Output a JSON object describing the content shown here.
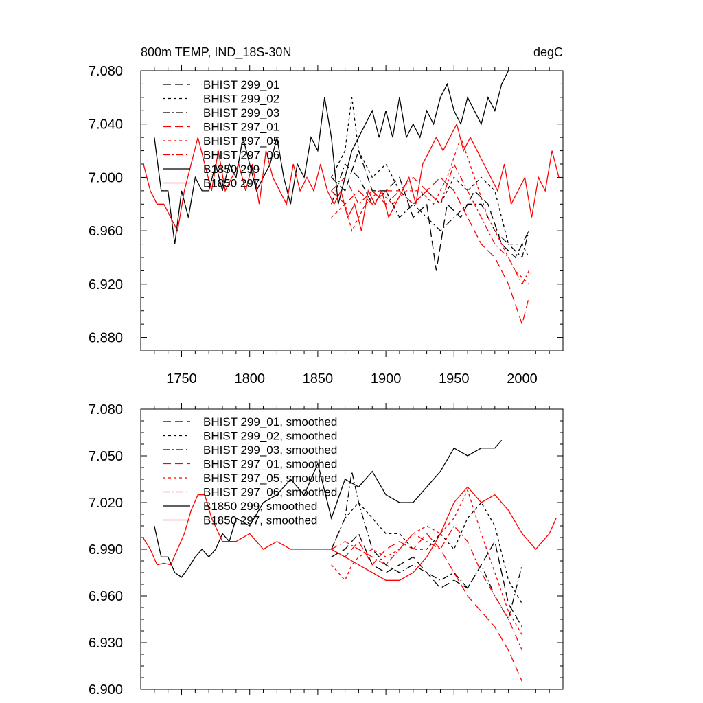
{
  "chart_data": [
    {
      "type": "line",
      "title": "800m TEMP, IND_18S-30N",
      "units": "degC",
      "xlim": [
        1720,
        2030
      ],
      "ylim": [
        6.87,
        7.08
      ],
      "xticks": [
        1750,
        1800,
        1850,
        1900,
        1950,
        2000
      ],
      "yticks": [
        6.88,
        6.92,
        6.96,
        7.0,
        7.04,
        7.08
      ],
      "ytick_labels": [
        "6.880",
        "6.920",
        "6.960",
        "7.000",
        "7.040",
        "7.080"
      ],
      "xtick_labels": [
        "1750",
        "1800",
        "1850",
        "1900",
        "1950",
        "2000"
      ],
      "legend": [
        "BHIST 299_01",
        "BHIST 299_02",
        "BHIST 299_03",
        "BHIST 297_01",
        "BHIST 297_05",
        "BHIST 297_06",
        "B1850 299",
        "B1850 297"
      ],
      "series": [
        {
          "name": "BHIST 299_01",
          "color": "#000000",
          "dash": "long",
          "x": [
            1860,
            1870,
            1880,
            1890,
            1900,
            1910,
            1920,
            1930,
            1937,
            1945,
            1955,
            1965,
            1975,
            1985,
            1995,
            2005
          ],
          "values": [
            7.0,
            6.99,
            7.02,
            6.99,
            6.99,
            7.0,
            6.97,
            6.98,
            6.93,
            6.98,
            6.97,
            6.99,
            6.98,
            6.95,
            6.94,
            6.96
          ]
        },
        {
          "name": "BHIST 299_02",
          "color": "#000000",
          "dash": "short",
          "x": [
            1860,
            1870,
            1875,
            1880,
            1890,
            1900,
            1910,
            1920,
            1930,
            1940,
            1950,
            1960,
            1970,
            1980,
            1990,
            2000,
            2005
          ],
          "values": [
            7.0,
            7.02,
            7.06,
            7.02,
            7.0,
            7.01,
            6.99,
            6.98,
            6.99,
            6.98,
            7.0,
            6.99,
            7.0,
            6.99,
            6.95,
            6.95,
            6.94
          ]
        },
        {
          "name": "BHIST 299_03",
          "color": "#000000",
          "dash": "dashdot",
          "x": [
            1860,
            1870,
            1880,
            1890,
            1900,
            1910,
            1920,
            1930,
            1940,
            1950,
            1960,
            1970,
            1980,
            1990,
            2000,
            2005
          ],
          "values": [
            6.98,
            7.01,
            7.0,
            6.98,
            6.99,
            6.97,
            6.98,
            6.97,
            6.96,
            6.97,
            6.98,
            6.98,
            6.96,
            6.95,
            6.94,
            6.96
          ]
        },
        {
          "name": "BHIST 297_01",
          "color": "#ff0000",
          "dash": "long",
          "x": [
            1860,
            1870,
            1880,
            1890,
            1900,
            1910,
            1920,
            1930,
            1940,
            1950,
            1960,
            1970,
            1980,
            1990,
            2000,
            2005
          ],
          "values": [
            6.99,
            6.98,
            6.99,
            6.98,
            6.99,
            6.99,
            6.98,
            6.99,
            7.0,
            6.99,
            6.97,
            6.95,
            6.94,
            6.92,
            6.89,
            6.91
          ]
        },
        {
          "name": "BHIST 297_05",
          "color": "#ff0000",
          "dash": "short",
          "x": [
            1860,
            1870,
            1875,
            1885,
            1895,
            1905,
            1915,
            1925,
            1935,
            1945,
            1955,
            1965,
            1975,
            1985,
            1995,
            2005
          ],
          "values": [
            6.97,
            6.98,
            6.96,
            6.98,
            6.99,
            6.98,
            6.99,
            6.99,
            6.98,
            7.0,
            7.03,
            7.0,
            6.97,
            6.95,
            6.93,
            6.92
          ]
        },
        {
          "name": "BHIST 297_06",
          "color": "#ff0000",
          "dash": "dashdot",
          "x": [
            1860,
            1870,
            1880,
            1890,
            1900,
            1910,
            1920,
            1930,
            1940,
            1950,
            1960,
            1970,
            1980,
            1990,
            2000,
            2005
          ],
          "values": [
            6.99,
            7.0,
            6.98,
            6.99,
            6.98,
            6.99,
            7.0,
            6.99,
            6.98,
            7.01,
            6.99,
            6.97,
            6.95,
            6.94,
            6.92,
            6.93
          ]
        },
        {
          "name": "B1850 299",
          "color": "#000000",
          "dash": "solid",
          "x": [
            1730,
            1735,
            1740,
            1745,
            1750,
            1755,
            1760,
            1765,
            1770,
            1775,
            1780,
            1785,
            1790,
            1795,
            1800,
            1805,
            1810,
            1815,
            1820,
            1825,
            1830,
            1835,
            1840,
            1845,
            1850,
            1855,
            1860,
            1865,
            1870,
            1875,
            1880,
            1885,
            1890,
            1895,
            1900,
            1905,
            1910,
            1915,
            1920,
            1925,
            1930,
            1935,
            1940,
            1945,
            1950,
            1955,
            1960,
            1965,
            1970,
            1975,
            1980,
            1985,
            1990
          ],
          "values": [
            7.03,
            6.99,
            6.99,
            6.95,
            6.99,
            6.97,
            7.0,
            6.99,
            6.99,
            7.01,
            6.99,
            7.01,
            7.0,
            7.03,
            7.01,
            6.99,
            7.0,
            7.01,
            7.03,
            7.0,
            6.98,
            7.01,
            7.0,
            7.03,
            7.02,
            7.06,
            7.03,
            6.98,
            7.0,
            7.02,
            7.03,
            7.04,
            7.05,
            7.03,
            7.05,
            7.03,
            7.06,
            7.03,
            7.04,
            7.03,
            7.05,
            7.04,
            7.06,
            7.07,
            7.05,
            7.04,
            7.06,
            7.05,
            7.04,
            7.06,
            7.05,
            7.07,
            7.08
          ]
        },
        {
          "name": "B1850 297",
          "color": "#ff0000",
          "dash": "solid",
          "x": [
            1722,
            1727,
            1732,
            1737,
            1742,
            1747,
            1752,
            1757,
            1762,
            1767,
            1772,
            1777,
            1782,
            1787,
            1792,
            1797,
            1802,
            1807,
            1812,
            1817,
            1822,
            1827,
            1832,
            1837,
            1842,
            1847,
            1852,
            1857,
            1862,
            1867,
            1872,
            1877,
            1882,
            1887,
            1892,
            1897,
            1902,
            1907,
            1912,
            1917,
            1922,
            1927,
            1932,
            1937,
            1942,
            1947,
            1952,
            1957,
            1962,
            1967,
            1972,
            1977,
            1982,
            1987,
            1992,
            1997,
            2002,
            2007,
            2012,
            2017,
            2022,
            2027
          ],
          "values": [
            7.01,
            6.99,
            6.98,
            6.98,
            6.97,
            6.96,
            6.99,
            7.01,
            7.03,
            7.01,
            6.99,
            7.02,
            6.99,
            7.0,
            7.01,
            6.99,
            7.01,
            6.98,
            7.02,
            7.0,
            6.99,
            6.98,
            7.01,
            6.99,
            7.0,
            6.99,
            7.01,
            6.99,
            6.98,
            6.99,
            6.97,
            6.98,
            6.96,
            6.99,
            6.98,
            6.99,
            6.97,
            6.98,
            6.99,
            7.0,
            6.98,
            7.01,
            7.02,
            7.03,
            7.02,
            7.03,
            7.04,
            7.02,
            7.03,
            7.02,
            7.01,
            7.0,
            6.99,
            7.01,
            6.98,
            6.99,
            7.0,
            6.97,
            7.0,
            6.99,
            7.02,
            7.0
          ]
        }
      ]
    },
    {
      "type": "line",
      "title": "",
      "xlim": [
        1720,
        2030
      ],
      "ylim": [
        6.9,
        7.08
      ],
      "yticks": [
        6.9,
        6.93,
        6.96,
        6.99,
        7.02,
        7.05,
        7.08
      ],
      "ytick_labels": [
        "6.900",
        "6.930",
        "6.960",
        "6.990",
        "7.020",
        "7.050",
        "7.080"
      ],
      "legend": [
        "BHIST 299_01, smoothed",
        "BHIST 299_02, smoothed",
        "BHIST 299_03, smoothed",
        "BHIST 297_01, smoothed",
        "BHIST 297_05, smoothed",
        "BHIST 297_06, smoothed",
        "B1850 299, smoothed",
        "B1850 297, smoothed"
      ],
      "series": [
        {
          "name": "BHIST 299_01, smoothed",
          "color": "#000000",
          "dash": "long",
          "x": [
            1860,
            1870,
            1880,
            1890,
            1900,
            1910,
            1920,
            1930,
            1940,
            1950,
            1960,
            1970,
            1980,
            1990,
            2000
          ],
          "values": [
            6.985,
            6.99,
            7.0,
            6.98,
            6.975,
            6.98,
            6.985,
            6.975,
            6.965,
            6.97,
            6.965,
            6.98,
            6.995,
            6.955,
            6.94
          ]
        },
        {
          "name": "BHIST 299_02, smoothed",
          "color": "#000000",
          "dash": "short",
          "x": [
            1860,
            1870,
            1880,
            1890,
            1900,
            1910,
            1920,
            1930,
            1940,
            1950,
            1960,
            1970,
            1980,
            1990,
            2000
          ],
          "values": [
            6.99,
            7.01,
            7.02,
            7.01,
            7.0,
            7.0,
            6.99,
            6.99,
            7.0,
            6.99,
            7.01,
            7.02,
            7.005,
            6.97,
            6.955
          ]
        },
        {
          "name": "BHIST 299_03, smoothed",
          "color": "#000000",
          "dash": "dashdot",
          "x": [
            1860,
            1870,
            1875,
            1880,
            1890,
            1900,
            1910,
            1920,
            1930,
            1940,
            1950,
            1960,
            1970,
            1980,
            1990,
            2000
          ],
          "values": [
            6.99,
            7.01,
            7.04,
            7.02,
            6.99,
            6.98,
            6.975,
            6.98,
            6.975,
            6.97,
            6.975,
            6.965,
            6.98,
            6.96,
            6.945,
            6.98
          ]
        },
        {
          "name": "BHIST 297_01, smoothed",
          "color": "#ff0000",
          "dash": "long",
          "x": [
            1860,
            1870,
            1880,
            1890,
            1900,
            1910,
            1920,
            1930,
            1940,
            1950,
            1960,
            1970,
            1980,
            1990,
            2000
          ],
          "values": [
            6.99,
            6.985,
            6.995,
            6.98,
            6.99,
            6.995,
            6.99,
            7.0,
            6.99,
            6.975,
            6.96,
            6.95,
            6.94,
            6.925,
            6.905
          ]
        },
        {
          "name": "BHIST 297_05, smoothed",
          "color": "#ff0000",
          "dash": "short",
          "x": [
            1860,
            1865,
            1870,
            1875,
            1880,
            1890,
            1900,
            1910,
            1920,
            1930,
            1940,
            1950,
            1960,
            1970,
            1980,
            1990,
            2000
          ],
          "values": [
            6.98,
            6.975,
            6.97,
            6.98,
            6.985,
            6.99,
            6.985,
            6.99,
            7.0,
            7.005,
            7.0,
            7.01,
            7.028,
            7.0,
            6.975,
            6.95,
            6.935
          ]
        },
        {
          "name": "BHIST 297_06, smoothed",
          "color": "#ff0000",
          "dash": "dashdot",
          "x": [
            1860,
            1870,
            1880,
            1890,
            1900,
            1910,
            1920,
            1930,
            1940,
            1950,
            1960,
            1970,
            1980,
            1990,
            2000
          ],
          "values": [
            6.99,
            6.995,
            6.99,
            6.985,
            6.98,
            6.99,
            7.0,
            6.995,
            6.99,
            7.005,
            6.995,
            6.975,
            6.96,
            6.945,
            6.925
          ]
        },
        {
          "name": "B1850 299, smoothed",
          "color": "#000000",
          "dash": "solid",
          "x": [
            1730,
            1735,
            1740,
            1745,
            1750,
            1755,
            1760,
            1765,
            1770,
            1775,
            1780,
            1785,
            1790,
            1800,
            1810,
            1820,
            1830,
            1840,
            1850,
            1860,
            1870,
            1880,
            1890,
            1900,
            1910,
            1920,
            1930,
            1940,
            1950,
            1960,
            1970,
            1980,
            1985
          ],
          "values": [
            7.005,
            6.985,
            6.985,
            6.975,
            6.972,
            6.978,
            6.985,
            6.99,
            6.985,
            6.99,
            7.0,
            6.995,
            7.01,
            7.005,
            7.02,
            7.025,
            7.035,
            7.025,
            7.045,
            7.01,
            7.035,
            7.03,
            7.04,
            7.025,
            7.02,
            7.02,
            7.03,
            7.04,
            7.055,
            7.05,
            7.055,
            7.055,
            7.06
          ]
        },
        {
          "name": "B1850 297, smoothed",
          "color": "#ff0000",
          "dash": "solid",
          "x": [
            1722,
            1727,
            1732,
            1737,
            1742,
            1747,
            1752,
            1757,
            1762,
            1767,
            1772,
            1780,
            1790,
            1800,
            1810,
            1820,
            1830,
            1840,
            1850,
            1860,
            1870,
            1880,
            1890,
            1900,
            1910,
            1920,
            1930,
            1940,
            1950,
            1960,
            1970,
            1980,
            1990,
            2000,
            2010,
            2020,
            2025
          ],
          "values": [
            6.997,
            6.99,
            6.98,
            6.981,
            6.98,
            6.99,
            7.0,
            7.015,
            7.025,
            7.025,
            7.01,
            6.995,
            6.995,
            7.0,
            6.99,
            6.995,
            6.99,
            6.99,
            6.99,
            6.99,
            6.985,
            6.98,
            6.975,
            6.97,
            6.97,
            6.975,
            6.985,
            7.0,
            7.02,
            7.03,
            7.02,
            7.025,
            7.015,
            7.0,
            6.99,
            7.0,
            7.01
          ]
        }
      ]
    }
  ]
}
